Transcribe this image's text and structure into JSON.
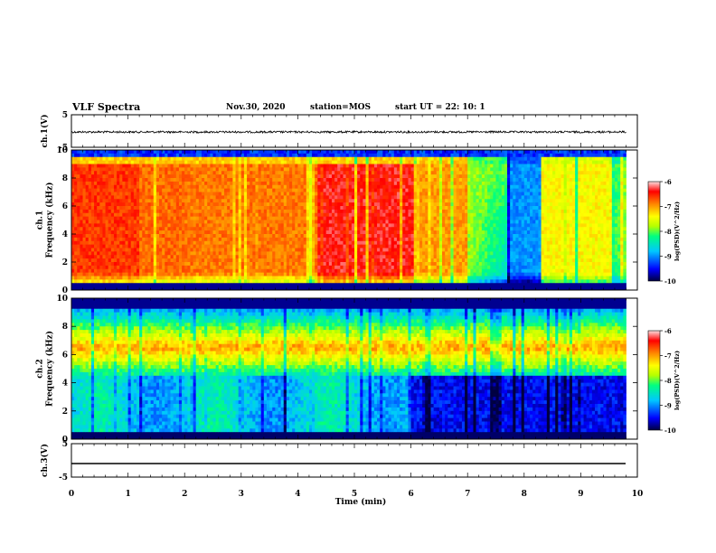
{
  "header": {
    "title": "VLF Spectra",
    "date": "Nov.30, 2020",
    "station": "station=MOS",
    "start": "start  UT =   22: 10: 1"
  },
  "colors": {
    "colormap": [
      "#000040",
      "#0000ff",
      "#00c8ff",
      "#00ff80",
      "#b4ff00",
      "#ffff00",
      "#ff8000",
      "#ff0000",
      "#ffffff"
    ]
  },
  "chart_data": [
    {
      "type": "line",
      "panel": "ch1-waveform",
      "ylabel": "ch.1(V)",
      "ylim": [
        -5,
        5
      ],
      "ytick_labels": [
        "5",
        "-5"
      ],
      "x": [
        0,
        10
      ],
      "values": [
        -0.3,
        -0.3
      ],
      "note_noise": "small fluctuation around -0.3 V"
    },
    {
      "type": "heatmap",
      "panel": "ch1-spectrogram",
      "ylabel": "ch.1\nFrequency (kHz)",
      "ylim": [
        0,
        10
      ],
      "ytick_labels": [
        "0",
        "2",
        "4",
        "6",
        "8",
        "10"
      ],
      "xlim": [
        0,
        9.8
      ],
      "colorbar": {
        "label": "log(PSD)(V^2/Hz)",
        "range": [
          -10,
          -6
        ],
        "tick_labels": [
          "-6",
          "-7",
          "-8",
          "-9",
          "-10"
        ]
      },
      "segments_min": [
        0,
        1.2,
        2.0,
        4.3,
        6.1,
        7.0,
        7.7,
        8.3,
        9.8
      ],
      "levels": [
        -6.6,
        -6.8,
        -6.85,
        -6.4,
        -7.0,
        -7.8,
        -9.0,
        -7.4
      ],
      "band_top_khz": 9.0
    },
    {
      "type": "heatmap",
      "panel": "ch2-spectrogram",
      "ylabel": "ch.2\nFrequency (kHz)",
      "ylim": [
        0,
        10
      ],
      "ytick_labels": [
        "0",
        "2",
        "4",
        "6",
        "8",
        "10"
      ],
      "xlim": [
        0,
        9.8
      ],
      "colorbar": {
        "label": "log(PSD)(V^2/Hz)",
        "range": [
          -10,
          -6
        ],
        "tick_labels": [
          "-6",
          "-7",
          "-8",
          "-9",
          "-10"
        ]
      },
      "band_center_khz": 6.5,
      "low_band_until_min": 6.0
    },
    {
      "type": "line",
      "panel": "ch3-waveform",
      "ylabel": "ch.3(V)",
      "ylim": [
        -5,
        5
      ],
      "ytick_labels": [
        "5",
        "-5"
      ],
      "x": [
        0,
        10
      ],
      "values": [
        -0.8,
        -0.8
      ]
    }
  ],
  "xaxis": {
    "label": "Time (min)",
    "xlim": [
      0,
      10
    ],
    "tick_labels": [
      "0",
      "1",
      "2",
      "3",
      "4",
      "5",
      "6",
      "7",
      "8",
      "9",
      "10"
    ]
  }
}
